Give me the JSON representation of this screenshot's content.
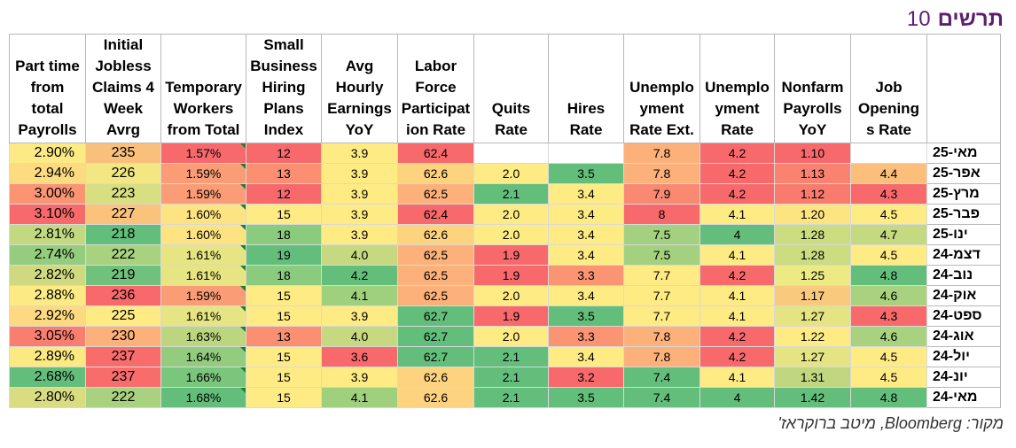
{
  "title": {
    "word": "תרשים",
    "number": "10"
  },
  "source": "מקור: Bloomberg, מיטב ברוקראז'",
  "colors": {
    "red": "#f8696b",
    "yellow": "#ffeb84",
    "green": "#63be7b",
    "header_bg": "#ffffff",
    "title": "#5b1f6e"
  },
  "chart_data": {
    "type": "heatmap",
    "title": "",
    "columns": [
      "Part time from total Payrolls",
      "Initial Jobless Claims 4 Week Avrg",
      "Temporary Workers from Total",
      "Small Business Hiring Plans Index",
      "Avg Hourly Earnings YoY",
      "Labor Force Participation Rate",
      "Quits Rate",
      "Hires Rate",
      "Unemployment Rate Ext.",
      "Unemployment Rate",
      "Nonfarm Payrolls YoY",
      "Job Openings Rate",
      ""
    ],
    "header_lines": [
      [
        "Part time",
        "from",
        "total",
        "Payrolls"
      ],
      [
        "Initial",
        "Jobless",
        "Claims 4",
        "Week",
        "Avrg"
      ],
      [
        "Temporary",
        "Workers",
        "from Total"
      ],
      [
        "Small",
        "Business",
        "Hiring",
        "Plans",
        "Index"
      ],
      [
        "Avg",
        "Hourly",
        "Earnings",
        "YoY"
      ],
      [
        "Labor",
        "Force",
        "Participat",
        "ion Rate"
      ],
      [
        "Quits",
        "Rate"
      ],
      [
        "Hires",
        "Rate"
      ],
      [
        "Unemplo",
        "yment",
        "Rate Ext."
      ],
      [
        "Unemplo",
        "yment",
        "Rate"
      ],
      [
        "Nonfarm",
        "Payrolls",
        "YoY"
      ],
      [
        "Job",
        "Opening",
        "s Rate"
      ],
      []
    ],
    "rows": [
      "מאי-25",
      "אפר-25",
      "מרץ-25",
      "פבר-25",
      "ינו-25",
      "דצמ-24",
      "נוב-24",
      "אוק-24",
      "ספט-24",
      "אוג-24",
      "יול-24",
      "יונ-24",
      "מאי-24"
    ],
    "values": [
      [
        "2.90%",
        "235",
        "1.57%",
        "12",
        "3.9",
        "62.4",
        "",
        "",
        "7.8",
        "4.2",
        "1.10",
        ""
      ],
      [
        "2.94%",
        "226",
        "1.59%",
        "13",
        "3.9",
        "62.6",
        "2.0",
        "3.5",
        "7.8",
        "4.2",
        "1.13",
        "4.4"
      ],
      [
        "3.00%",
        "223",
        "1.59%",
        "12",
        "3.9",
        "62.5",
        "2.1",
        "3.4",
        "7.9",
        "4.2",
        "1.12",
        "4.3"
      ],
      [
        "3.10%",
        "227",
        "1.60%",
        "15",
        "3.9",
        "62.4",
        "2.0",
        "3.4",
        "8",
        "4.1",
        "1.20",
        "4.5"
      ],
      [
        "2.81%",
        "218",
        "1.60%",
        "18",
        "3.9",
        "62.6",
        "2.0",
        "3.4",
        "7.5",
        "4",
        "1.28",
        "4.7"
      ],
      [
        "2.74%",
        "222",
        "1.61%",
        "19",
        "4.0",
        "62.5",
        "1.9",
        "3.4",
        "7.5",
        "4.1",
        "1.28",
        "4.5"
      ],
      [
        "2.82%",
        "219",
        "1.61%",
        "18",
        "4.2",
        "62.5",
        "1.9",
        "3.3",
        "7.7",
        "4.2",
        "1.25",
        "4.8"
      ],
      [
        "2.88%",
        "236",
        "1.59%",
        "15",
        "4.1",
        "62.5",
        "2.0",
        "3.4",
        "7.7",
        "4.1",
        "1.17",
        "4.6"
      ],
      [
        "2.92%",
        "225",
        "1.61%",
        "15",
        "3.9",
        "62.7",
        "1.9",
        "3.5",
        "7.7",
        "4.1",
        "1.27",
        "4.3"
      ],
      [
        "3.05%",
        "230",
        "1.63%",
        "13",
        "4.0",
        "62.7",
        "2.0",
        "3.3",
        "7.8",
        "4.2",
        "1.22",
        "4.6"
      ],
      [
        "2.89%",
        "237",
        "1.64%",
        "15",
        "3.6",
        "62.7",
        "2.1",
        "3.4",
        "7.8",
        "4.2",
        "1.27",
        "4.5"
      ],
      [
        "2.68%",
        "237",
        "1.66%",
        "15",
        "3.9",
        "62.6",
        "2.1",
        "3.2",
        "7.4",
        "4.1",
        "1.31",
        "4.5"
      ],
      [
        "2.80%",
        "222",
        "1.68%",
        "15",
        "4.1",
        "62.6",
        "2.1",
        "3.5",
        "7.4",
        "4",
        "1.42",
        "4.8"
      ]
    ],
    "cell_colors": [
      [
        "#fceb84",
        "#f9c07c",
        "#f8696b",
        "#f8696b",
        "#ffeb84",
        "#f8696b",
        "#ffffff",
        "#ffffff",
        "#fcb07a",
        "#f8696b",
        "#f8696b",
        "#ffffff"
      ],
      [
        "#fddc81",
        "#f2e783",
        "#fa9c75",
        "#fa8f72",
        "#ffeb84",
        "#fdd37f",
        "#ffeb84",
        "#63be7b",
        "#fcb07a",
        "#f8696b",
        "#f98370",
        "#fcbf7b"
      ],
      [
        "#fa9473",
        "#d8df81",
        "#fa9c75",
        "#f8696b",
        "#ffeb84",
        "#fbb179",
        "#63be7b",
        "#ffeb84",
        "#f98971",
        "#f8696b",
        "#f97b6e",
        "#f8696b"
      ],
      [
        "#f8696b",
        "#fbc27c",
        "#fde381",
        "#ffeb84",
        "#ffeb84",
        "#f8696b",
        "#ffeb84",
        "#ffeb84",
        "#f8696b",
        "#ffeb84",
        "#fde481",
        "#ffeb84"
      ],
      [
        "#c3d980",
        "#63be7b",
        "#fde381",
        "#8acb7e",
        "#ffeb84",
        "#fdd37f",
        "#ffeb84",
        "#ffeb84",
        "#a3d17f",
        "#63be7b",
        "#cbdc81",
        "#c5d980"
      ],
      [
        "#95cd7e",
        "#a8d27f",
        "#e6e483",
        "#63be7b",
        "#c6d980",
        "#fbb179",
        "#f8696b",
        "#ffeb84",
        "#a3d17f",
        "#ffeb84",
        "#cbdc81",
        "#ffeb84"
      ],
      [
        "#ced980",
        "#6fc17c",
        "#e6e483",
        "#8acb7e",
        "#63be7b",
        "#fbb179",
        "#f8696b",
        "#fa9473",
        "#ffeb84",
        "#f8696b",
        "#ecea83",
        "#63be7b"
      ],
      [
        "#fceb84",
        "#f8696b",
        "#fa9c75",
        "#ffeb84",
        "#9fd07e",
        "#fbb179",
        "#ffeb84",
        "#ffeb84",
        "#ffeb84",
        "#ffeb84",
        "#f9c97e",
        "#a8d27f"
      ],
      [
        "#fdda81",
        "#ffeb84",
        "#e6e483",
        "#ffeb84",
        "#ffeb84",
        "#63be7b",
        "#f8696b",
        "#63be7b",
        "#ffeb84",
        "#ffeb84",
        "#e4e483",
        "#f8696b"
      ],
      [
        "#f97e6f",
        "#fbb179",
        "#bbd67f",
        "#fa8f72",
        "#c6d980",
        "#63be7b",
        "#ffeb84",
        "#fa9473",
        "#fcb07a",
        "#f8696b",
        "#ffeb84",
        "#a8d27f"
      ],
      [
        "#fbe982",
        "#f86d6c",
        "#93cc7e",
        "#ffeb84",
        "#f8696b",
        "#63be7b",
        "#63be7b",
        "#ffeb84",
        "#fcb07a",
        "#f8696b",
        "#e4e483",
        "#ffeb84"
      ],
      [
        "#63be7b",
        "#f86d6c",
        "#7bc67d",
        "#ffeb84",
        "#ffeb84",
        "#fdd37f",
        "#63be7b",
        "#f8696b",
        "#63be7b",
        "#ffeb84",
        "#c0d780",
        "#ffeb84"
      ],
      [
        "#d9dc81",
        "#a8d27f",
        "#63be7b",
        "#ffeb84",
        "#9fd07e",
        "#fdd37f",
        "#63be7b",
        "#63be7b",
        "#63be7b",
        "#63be7b",
        "#63be7b",
        "#63be7b"
      ]
    ]
  }
}
